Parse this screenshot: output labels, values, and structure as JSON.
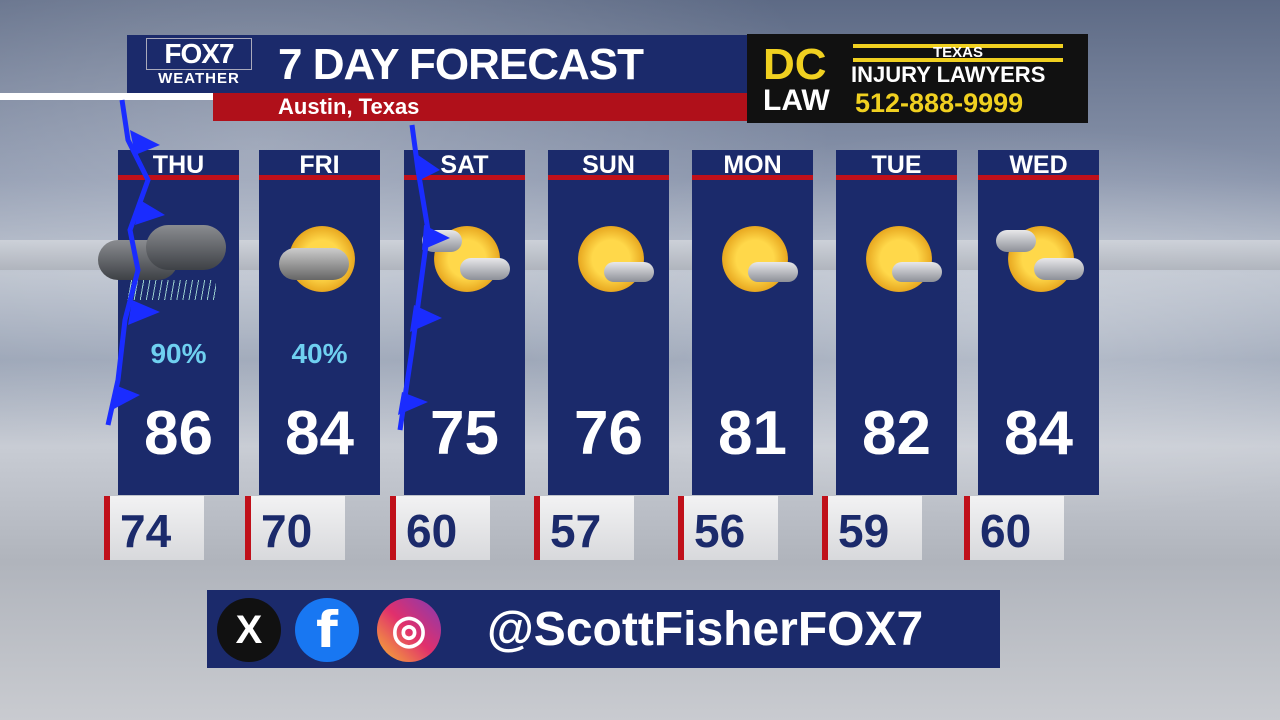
{
  "header": {
    "logo_top": "FOX7",
    "logo_bottom": "WEATHER",
    "title": "7 DAY FORECAST",
    "location": "Austin, Texas"
  },
  "ad": {
    "brand_top": "DC",
    "brand_bottom": "LAW",
    "state": "TEXAS",
    "tagline": "INJURY LAWYERS",
    "phone": "512-888-9999"
  },
  "days": [
    {
      "day": "THU",
      "icon": "thunderstorm-rain-icon",
      "precip": "90%",
      "high": "86",
      "low": "74"
    },
    {
      "day": "FRI",
      "icon": "partly-sunny-showers-icon",
      "precip": "40%",
      "high": "84",
      "low": "70"
    },
    {
      "day": "SAT",
      "icon": "partly-sunny-icon",
      "precip": "",
      "high": "75",
      "low": "60"
    },
    {
      "day": "SUN",
      "icon": "mostly-sunny-icon",
      "precip": "",
      "high": "76",
      "low": "57"
    },
    {
      "day": "MON",
      "icon": "mostly-sunny-icon",
      "precip": "",
      "high": "81",
      "low": "56"
    },
    {
      "day": "TUE",
      "icon": "mostly-sunny-icon",
      "precip": "",
      "high": "82",
      "low": "59"
    },
    {
      "day": "WED",
      "icon": "partly-sunny-icon",
      "precip": "",
      "high": "84",
      "low": "60"
    }
  ],
  "social": {
    "handle": "@ScottFisherFOX7",
    "x_glyph": "X",
    "facebook_glyph": "f",
    "instagram_glyph": "◎"
  },
  "colors": {
    "navy": "#1b2a6b",
    "red": "#b0101a",
    "precip": "#6fd0f0",
    "front": "#1a2cff"
  }
}
